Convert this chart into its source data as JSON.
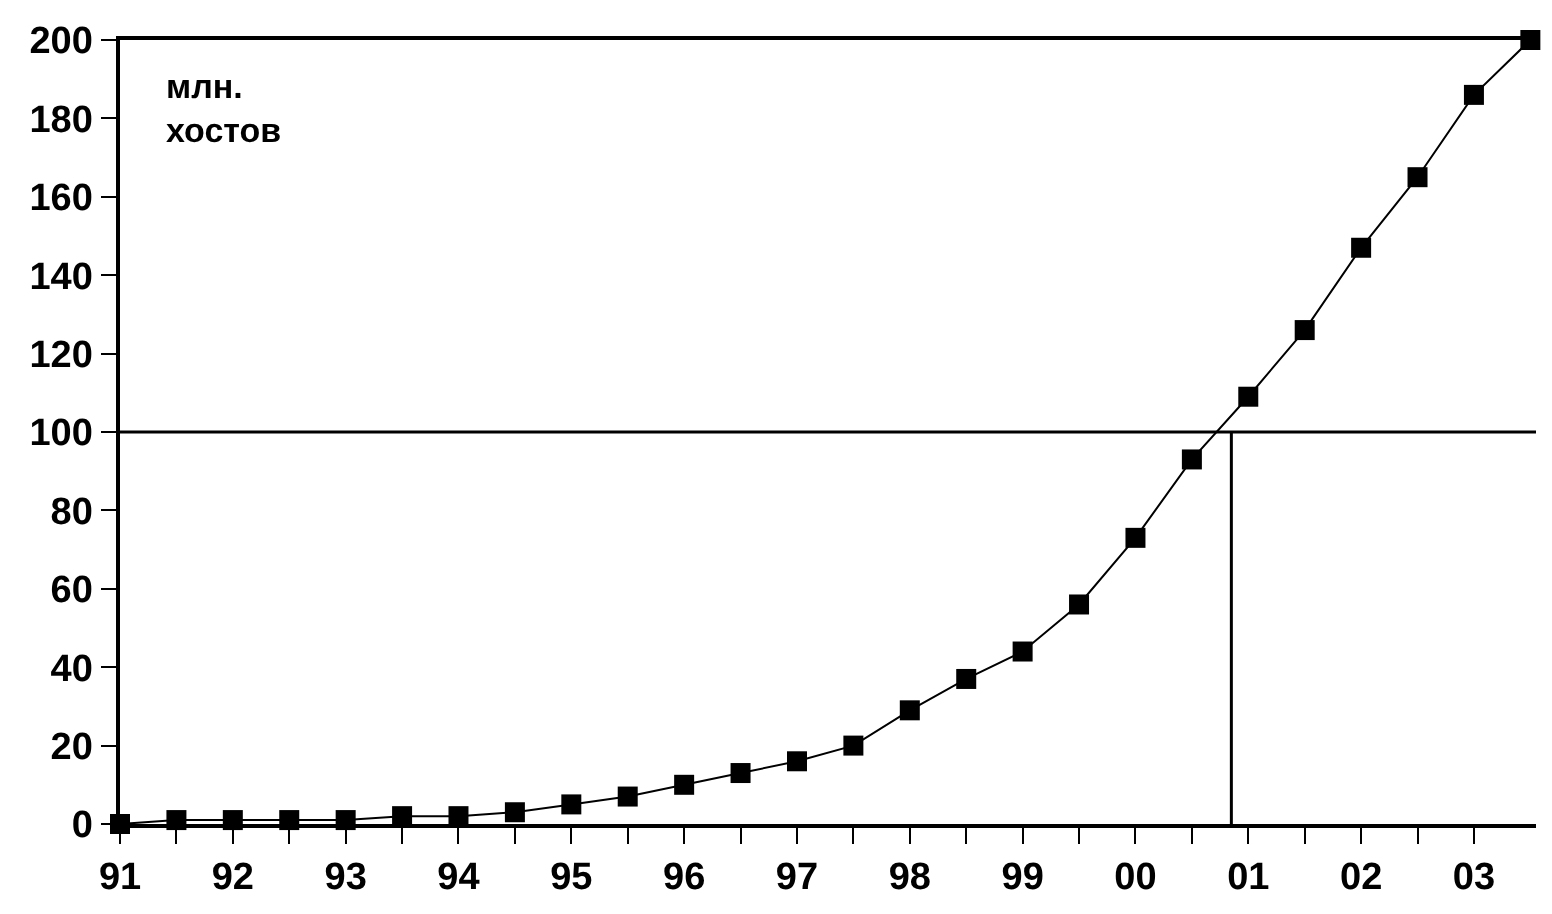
{
  "chart_data": {
    "type": "line",
    "ylabel": "млн.\nхостов",
    "x": [
      1991,
      1991.5,
      1992,
      1992.5,
      1993,
      1993.5,
      1994,
      1994.5,
      1995,
      1995.5,
      1996,
      1996.5,
      1997,
      1997.5,
      1998,
      1998.5,
      1999,
      1999.5,
      2000,
      2000.5,
      2001,
      2001.5,
      2002,
      2002.5,
      2003,
      2003.5
    ],
    "series": [
      {
        "color": "#000000",
        "values": [
          0,
          1,
          1,
          1,
          1,
          2,
          2,
          3,
          5,
          7,
          10,
          13,
          16,
          20,
          29,
          37,
          44,
          56,
          73,
          93,
          109,
          126,
          147,
          165,
          186,
          200
        ]
      }
    ],
    "xlim": [
      1991,
      2003.55
    ],
    "ylim": [
      0,
      200
    ],
    "xticks": [
      {
        "value": 1991,
        "label": "91"
      },
      {
        "value": 1991.5,
        "label": null
      },
      {
        "value": 1992,
        "label": "92"
      },
      {
        "value": 1992.5,
        "label": null
      },
      {
        "value": 1993,
        "label": "93"
      },
      {
        "value": 1993.5,
        "label": null
      },
      {
        "value": 1994,
        "label": "94"
      },
      {
        "value": 1994.5,
        "label": null
      },
      {
        "value": 1995,
        "label": "95"
      },
      {
        "value": 1995.5,
        "label": null
      },
      {
        "value": 1996,
        "label": "96"
      },
      {
        "value": 1996.5,
        "label": null
      },
      {
        "value": 1997,
        "label": "97"
      },
      {
        "value": 1997.5,
        "label": null
      },
      {
        "value": 1998,
        "label": "98"
      },
      {
        "value": 1998.5,
        "label": null
      },
      {
        "value": 1999,
        "label": "99"
      },
      {
        "value": 1999.5,
        "label": null
      },
      {
        "value": 2000,
        "label": "00"
      },
      {
        "value": 2000.5,
        "label": null
      },
      {
        "value": 2001,
        "label": "01"
      },
      {
        "value": 2001.5,
        "label": null
      },
      {
        "value": 2002,
        "label": "02"
      },
      {
        "value": 2002.5,
        "label": null
      },
      {
        "value": 2003,
        "label": "03"
      }
    ],
    "yticks": [
      0,
      20,
      40,
      60,
      80,
      100,
      120,
      140,
      160,
      180,
      200
    ],
    "ref_lines": [
      {
        "axis": "y",
        "value": 100
      },
      {
        "axis": "x",
        "value": 2000.85
      }
    ],
    "marker": "square",
    "line_style": "solid"
  }
}
